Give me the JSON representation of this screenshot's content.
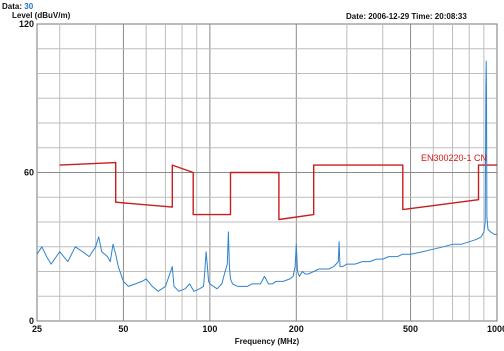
{
  "header": {
    "data_label": "Data:",
    "data_value": "30",
    "level_label": "Level (dBuV/m)",
    "date_label": "Date: 2006-12-29",
    "time_label": "Time: 20:08:33"
  },
  "chart_data": {
    "type": "line",
    "xlabel": "Frequency (MHz)",
    "ylabel": "Level (dBuV/m)",
    "xscale": "log",
    "xlim": [
      25,
      1000
    ],
    "ylim": [
      0,
      120
    ],
    "xticks": [
      25,
      50,
      100,
      200,
      500,
      1000
    ],
    "yticks": [
      0,
      60,
      120
    ],
    "grid": true,
    "series": [
      {
        "name": "EN300220-1 CN",
        "color": "#c81e1e",
        "points": [
          [
            30,
            63
          ],
          [
            47,
            64
          ],
          [
            47,
            48
          ],
          [
            74,
            46
          ],
          [
            74,
            63
          ],
          [
            87.5,
            60
          ],
          [
            87.5,
            43
          ],
          [
            118,
            43
          ],
          [
            118,
            60
          ],
          [
            174,
            60
          ],
          [
            174,
            41
          ],
          [
            230,
            43
          ],
          [
            230,
            63
          ],
          [
            470,
            63
          ],
          [
            470,
            45
          ],
          [
            862,
            49
          ],
          [
            862,
            63
          ],
          [
            1000,
            63
          ]
        ]
      },
      {
        "name": "",
        "color": "#2f83cf",
        "points": [
          [
            25,
            27
          ],
          [
            26,
            30
          ],
          [
            27,
            26
          ],
          [
            28,
            23
          ],
          [
            30,
            28
          ],
          [
            32,
            24
          ],
          [
            34,
            30
          ],
          [
            36,
            28
          ],
          [
            38,
            26
          ],
          [
            40,
            30
          ],
          [
            41,
            34
          ],
          [
            42,
            28
          ],
          [
            44,
            26
          ],
          [
            45,
            24
          ],
          [
            46,
            31
          ],
          [
            47,
            27
          ],
          [
            48,
            22
          ],
          [
            50,
            16
          ],
          [
            52,
            14
          ],
          [
            55,
            15
          ],
          [
            58,
            16
          ],
          [
            60,
            17
          ],
          [
            63,
            14
          ],
          [
            66,
            12
          ],
          [
            70,
            14
          ],
          [
            72,
            18
          ],
          [
            74,
            22
          ],
          [
            75,
            14
          ],
          [
            78,
            12
          ],
          [
            82,
            13
          ],
          [
            85,
            15
          ],
          [
            88,
            12
          ],
          [
            92,
            13
          ],
          [
            95,
            14
          ],
          [
            96,
            20
          ],
          [
            97,
            28
          ],
          [
            98,
            22
          ],
          [
            99,
            16
          ],
          [
            100,
            15
          ],
          [
            103,
            14
          ],
          [
            106,
            13
          ],
          [
            110,
            15
          ],
          [
            113,
            20
          ],
          [
            115,
            23
          ],
          [
            116,
            36
          ],
          [
            117,
            22
          ],
          [
            118,
            17
          ],
          [
            120,
            15
          ],
          [
            125,
            14
          ],
          [
            130,
            14
          ],
          [
            135,
            14
          ],
          [
            140,
            15
          ],
          [
            150,
            15
          ],
          [
            155,
            18
          ],
          [
            160,
            15
          ],
          [
            165,
            15
          ],
          [
            170,
            16
          ],
          [
            180,
            16
          ],
          [
            190,
            17
          ],
          [
            195,
            18
          ],
          [
            198,
            22
          ],
          [
            200,
            31
          ],
          [
            202,
            20
          ],
          [
            205,
            18
          ],
          [
            210,
            20
          ],
          [
            215,
            19
          ],
          [
            220,
            19
          ],
          [
            230,
            20
          ],
          [
            240,
            21
          ],
          [
            250,
            21
          ],
          [
            260,
            21
          ],
          [
            270,
            22
          ],
          [
            280,
            24
          ],
          [
            282,
            32
          ],
          [
            284,
            22
          ],
          [
            290,
            22
          ],
          [
            300,
            23
          ],
          [
            320,
            23
          ],
          [
            340,
            24
          ],
          [
            360,
            24
          ],
          [
            380,
            25
          ],
          [
            400,
            25
          ],
          [
            420,
            26
          ],
          [
            450,
            26
          ],
          [
            470,
            27
          ],
          [
            500,
            27
          ],
          [
            550,
            28
          ],
          [
            600,
            29
          ],
          [
            650,
            30
          ],
          [
            700,
            31
          ],
          [
            750,
            31
          ],
          [
            800,
            32
          ],
          [
            850,
            33
          ],
          [
            880,
            34
          ],
          [
            900,
            36
          ],
          [
            910,
            40
          ],
          [
            915,
            95
          ],
          [
            917,
            105
          ],
          [
            919,
            92
          ],
          [
            922,
            42
          ],
          [
            930,
            37
          ],
          [
            950,
            36
          ],
          [
            980,
            35
          ],
          [
            1000,
            35
          ]
        ]
      }
    ],
    "annotations": [
      "EN300220-1 CN"
    ],
    "legend": "none"
  }
}
